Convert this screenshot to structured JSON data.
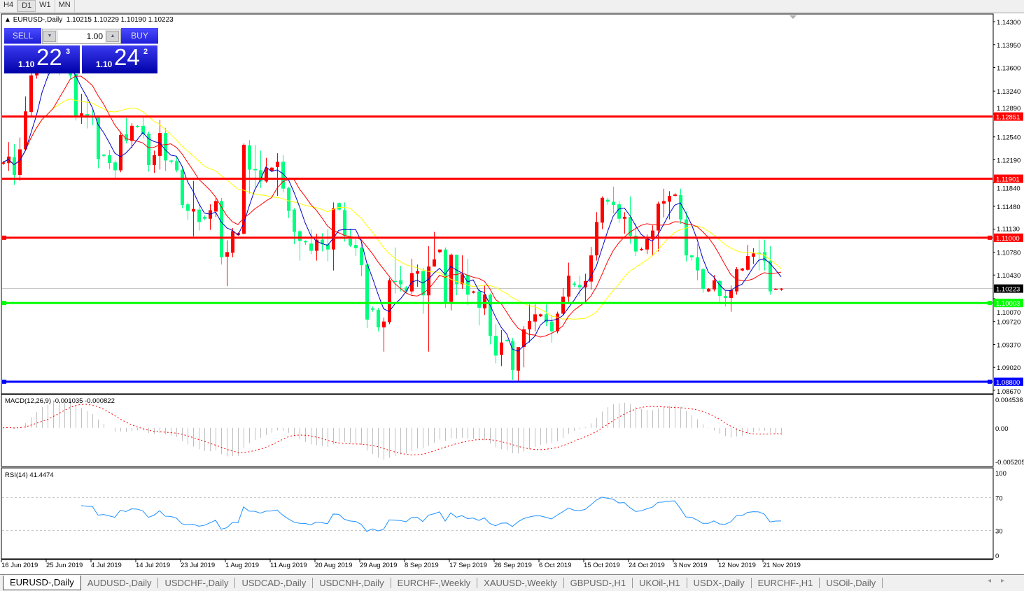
{
  "toolbar": {
    "timeframes": [
      "H4",
      "D1",
      "W1",
      "MN"
    ],
    "active": "D1"
  },
  "chart": {
    "symbol_info": "EURUSD-,Daily  1.10215 1.10229 1.10190 1.10223",
    "price_range": [
      1.08627,
      1.14407
    ],
    "price_ticks": [
      "1.14300",
      "1.13950",
      "1.13600",
      "1.13240",
      "1.12890",
      "1.12540",
      "1.12190",
      "1.11840",
      "1.11480",
      "1.11130",
      "1.10780",
      "1.10430",
      "1.10070",
      "1.09720",
      "1.09370",
      "1.09020",
      "1.08670"
    ],
    "current_price": "1.10223",
    "colors": {
      "bull": "#ff0000",
      "bear": "#00ff7f",
      "ma_fast": "#0000c8",
      "ma_mid": "#ff0000",
      "ma_slow": "#ffff00",
      "current_line": "#c0c0c0"
    },
    "hlines": [
      {
        "price": "1.12851",
        "color": "#ff0000",
        "selected": false
      },
      {
        "price": "1.11901",
        "color": "#ff0000",
        "selected": false
      },
      {
        "price": "1.11000",
        "color": "#ff0000",
        "selected": true
      },
      {
        "price": "1.10003",
        "color": "#00ff00",
        "selected": true
      },
      {
        "price": "1.08800",
        "color": "#0000ff",
        "selected": true
      }
    ],
    "candles": [
      [
        1.1213,
        1.1217,
        1.1211,
        1.1215
      ],
      [
        1.1214,
        1.1246,
        1.1202,
        1.1224
      ],
      [
        1.1223,
        1.1243,
        1.1181,
        1.1196
      ],
      [
        1.1196,
        1.1253,
        1.1187,
        1.1235
      ],
      [
        1.1235,
        1.1316,
        1.1235,
        1.1293
      ],
      [
        1.1292,
        1.1355,
        1.1286,
        1.1348
      ],
      [
        1.1348,
        1.1366,
        1.1343,
        1.1361
      ],
      [
        1.1361,
        1.1378,
        1.1355,
        1.1372
      ],
      [
        1.1372,
        1.1377,
        1.1343,
        1.1355
      ],
      [
        1.1355,
        1.1385,
        1.1351,
        1.1377
      ],
      [
        1.1377,
        1.1382,
        1.1348,
        1.1361
      ],
      [
        1.1361,
        1.1375,
        1.1355,
        1.1368
      ],
      [
        1.1368,
        1.1373,
        1.1343,
        1.1348
      ],
      [
        1.135,
        1.1355,
        1.1279,
        1.1285
      ],
      [
        1.1285,
        1.132,
        1.1274,
        1.129
      ],
      [
        1.1289,
        1.1311,
        1.1267,
        1.1285
      ],
      [
        1.1286,
        1.1295,
        1.1272,
        1.1284
      ],
      [
        1.1284,
        1.1286,
        1.1206,
        1.122
      ],
      [
        1.1227,
        1.1228,
        1.1223,
        1.1225
      ],
      [
        1.1226,
        1.1234,
        1.1205,
        1.1214
      ],
      [
        1.1215,
        1.1218,
        1.1192,
        1.1203
      ],
      [
        1.1203,
        1.1262,
        1.12,
        1.1257
      ],
      [
        1.1258,
        1.1283,
        1.1244,
        1.1248
      ],
      [
        1.1248,
        1.1275,
        1.1237,
        1.1271
      ],
      [
        1.1271,
        1.1272,
        1.1268,
        1.1269
      ],
      [
        1.1271,
        1.1283,
        1.1252,
        1.1258
      ],
      [
        1.1259,
        1.1262,
        1.1201,
        1.1211
      ],
      [
        1.1211,
        1.1233,
        1.1199,
        1.1226
      ],
      [
        1.1225,
        1.128,
        1.1204,
        1.126
      ],
      [
        1.126,
        1.1268,
        1.1202,
        1.1218
      ],
      [
        1.1218,
        1.1219,
        1.1213,
        1.1216
      ],
      [
        1.1217,
        1.1225,
        1.12,
        1.1203
      ],
      [
        1.1204,
        1.1207,
        1.1145,
        1.115
      ],
      [
        1.1151,
        1.1154,
        1.1127,
        1.1141
      ],
      [
        1.114,
        1.1187,
        1.1102,
        1.1144
      ],
      [
        1.1143,
        1.1151,
        1.1111,
        1.1124
      ],
      [
        1.1132,
        1.1134,
        1.1127,
        1.1129
      ],
      [
        1.1129,
        1.1151,
        1.1112,
        1.1142
      ],
      [
        1.114,
        1.1161,
        1.1132,
        1.1156
      ],
      [
        1.1156,
        1.1161,
        1.1059,
        1.107
      ],
      [
        1.1071,
        1.1096,
        1.1026,
        1.1078
      ],
      [
        1.1077,
        1.1115,
        1.107,
        1.111
      ],
      [
        1.1104,
        1.1108,
        1.1103,
        1.1107
      ],
      [
        1.1106,
        1.1244,
        1.1105,
        1.1242
      ],
      [
        1.1241,
        1.1249,
        1.1167,
        1.1204
      ],
      [
        1.1205,
        1.1242,
        1.1177,
        1.1203
      ],
      [
        1.1203,
        1.1233,
        1.1176,
        1.1186
      ],
      [
        1.1186,
        1.1222,
        1.1184,
        1.1206
      ],
      [
        1.1202,
        1.1208,
        1.1201,
        1.1207
      ],
      [
        1.1208,
        1.1229,
        1.1164,
        1.1216
      ],
      [
        1.1216,
        1.1226,
        1.1169,
        1.1175
      ],
      [
        1.1176,
        1.1178,
        1.113,
        1.1141
      ],
      [
        1.1143,
        1.1145,
        1.109,
        1.1109
      ],
      [
        1.111,
        1.1112,
        1.1065,
        1.1095
      ],
      [
        1.1095,
        1.1096,
        1.1089,
        1.1093
      ],
      [
        1.1091,
        1.1113,
        1.1075,
        1.108
      ],
      [
        1.108,
        1.1106,
        1.1065,
        1.1097
      ],
      [
        1.1097,
        1.1107,
        1.1079,
        1.109
      ],
      [
        1.109,
        1.1113,
        1.1064,
        1.1082
      ],
      [
        1.1082,
        1.1154,
        1.105,
        1.1145
      ],
      [
        1.1153,
        1.1154,
        1.1141,
        1.1143
      ],
      [
        1.1142,
        1.1154,
        1.1094,
        1.1103
      ],
      [
        1.1098,
        1.1114,
        1.1086,
        1.1088
      ],
      [
        1.1089,
        1.1098,
        1.1072,
        1.1084
      ],
      [
        1.1085,
        1.1092,
        1.1041,
        1.1058
      ],
      [
        1.1059,
        1.1061,
        1.0962,
        1.0975
      ],
      [
        1.0992,
        1.0995,
        1.0987,
        1.099
      ],
      [
        1.099,
        1.0993,
        1.0957,
        1.0963
      ],
      [
        1.0963,
        1.0978,
        1.0926,
        1.0972
      ],
      [
        1.0971,
        1.1038,
        1.0968,
        1.1035
      ],
      [
        1.1034,
        1.1085,
        1.1015,
        1.1033
      ],
      [
        1.1035,
        1.1057,
        1.1018,
        1.1029
      ],
      [
        1.1024,
        1.1026,
        1.1016,
        1.1018
      ],
      [
        1.1018,
        1.1068,
        1.1014,
        1.1046
      ],
      [
        1.1045,
        1.1059,
        1.1025,
        1.1049
      ],
      [
        1.1049,
        1.1054,
        1.0984,
        1.1012
      ],
      [
        1.1012,
        1.1087,
        1.0926,
        1.1056
      ],
      [
        1.1056,
        1.1109,
        1.1056,
        1.1067
      ],
      [
        1.1078,
        1.1082,
        1.1076,
        1.1082
      ],
      [
        1.1082,
        1.1085,
        1.0993,
        1.1002
      ],
      [
        1.1002,
        1.1076,
        1.0989,
        1.1074
      ],
      [
        1.1074,
        1.1074,
        1.1012,
        1.1029
      ],
      [
        1.1029,
        1.1073,
        1.1022,
        1.1044
      ],
      [
        1.1043,
        1.1068,
        1.0997,
        1.1013
      ],
      [
        1.1016,
        1.1019,
        1.1015,
        1.1018
      ],
      [
        1.1018,
        1.1023,
        1.0966,
        1.0993
      ],
      [
        1.0992,
        1.1027,
        1.0982,
        1.1013
      ],
      [
        1.1013,
        1.1015,
        1.0937,
        1.095
      ],
      [
        1.095,
        1.0968,
        1.0908,
        1.092
      ],
      [
        1.0921,
        1.0959,
        1.0904,
        1.094
      ],
      [
        1.0944,
        1.0945,
        1.0941,
        1.0942
      ],
      [
        1.0942,
        1.0947,
        1.0883,
        1.0898
      ],
      [
        1.0897,
        1.0932,
        1.0881,
        1.0933
      ],
      [
        1.0933,
        1.0965,
        1.0902,
        1.096
      ],
      [
        1.096,
        1.0998,
        1.094,
        1.0973
      ],
      [
        1.0972,
        1.0998,
        1.0957,
        1.0983
      ],
      [
        1.098,
        1.0984,
        1.0979,
        1.0983
      ],
      [
        1.0983,
        1.0998,
        1.0965,
        1.0971
      ],
      [
        1.0972,
        1.0982,
        1.094,
        1.0957
      ],
      [
        1.0957,
        1.0987,
        1.0954,
        1.0984
      ],
      [
        1.0984,
        1.1023,
        1.0982,
        1.101
      ],
      [
        1.101,
        1.1062,
        1.1002,
        1.1042
      ],
      [
        1.103,
        1.1033,
        1.1025,
        1.1028
      ],
      [
        1.1028,
        1.1042,
        1.1011,
        1.1024
      ],
      [
        1.1024,
        1.1045,
        1.1001,
        1.1034
      ],
      [
        1.1033,
        1.1086,
        1.1021,
        1.1073
      ],
      [
        1.1073,
        1.1139,
        1.1065,
        1.1124
      ],
      [
        1.1123,
        1.1163,
        1.1113,
        1.1161
      ],
      [
        1.1158,
        1.1161,
        1.115,
        1.1155
      ],
      [
        1.1155,
        1.1178,
        1.1137,
        1.115
      ],
      [
        1.1151,
        1.1156,
        1.1123,
        1.1129
      ],
      [
        1.1129,
        1.1139,
        1.1106,
        1.1132
      ],
      [
        1.1132,
        1.1163,
        1.1091,
        1.1103
      ],
      [
        1.1103,
        1.1122,
        1.1072,
        1.1079
      ],
      [
        1.1081,
        1.1085,
        1.108,
        1.1083
      ],
      [
        1.1082,
        1.1105,
        1.1075,
        1.1098
      ],
      [
        1.1098,
        1.1119,
        1.1072,
        1.1111
      ],
      [
        1.1111,
        1.1155,
        1.1079,
        1.1152
      ],
      [
        1.1152,
        1.1175,
        1.1131,
        1.1156
      ],
      [
        1.1155,
        1.1171,
        1.1128,
        1.1164
      ],
      [
        1.1164,
        1.1168,
        1.1163,
        1.1166
      ],
      [
        1.1165,
        1.1175,
        1.1121,
        1.1128
      ],
      [
        1.1128,
        1.114,
        1.1064,
        1.1073
      ],
      [
        1.1073,
        1.1074,
        1.1065,
        1.107
      ],
      [
        1.107,
        1.1091,
        1.1035,
        1.105
      ],
      [
        1.1052,
        1.1054,
        1.1016,
        1.1022
      ],
      [
        1.1018,
        1.1023,
        1.1017,
        1.1022
      ],
      [
        1.1021,
        1.1043,
        1.1018,
        1.1035
      ],
      [
        1.1034,
        1.1036,
        1.1002,
        1.1011
      ],
      [
        1.1011,
        1.102,
        1.0995,
        1.1008
      ],
      [
        1.1008,
        1.1027,
        1.0987,
        1.102
      ],
      [
        1.1018,
        1.1055,
        1.1013,
        1.1052
      ],
      [
        1.105,
        1.1054,
        1.1049,
        1.1053
      ],
      [
        1.1051,
        1.1089,
        1.105,
        1.1072
      ],
      [
        1.1071,
        1.1084,
        1.106,
        1.1076
      ],
      [
        1.1077,
        1.1097,
        1.105,
        1.1075
      ],
      [
        1.1078,
        1.1097,
        1.105,
        1.1064
      ],
      [
        1.1065,
        1.1087,
        1.1013,
        1.1018
      ],
      [
        1.1021,
        1.1023,
        1.102,
        1.1022
      ],
      [
        1.10215,
        1.10229,
        1.1019,
        1.10223
      ]
    ],
    "date_labels": [
      "16 Jun 2019",
      "25 Jun 2019",
      "4 Jul 2019",
      "14 Jul 2019",
      "23 Jul 2019",
      "1 Aug 2019",
      "11 Aug 2019",
      "20 Aug 2019",
      "29 Aug 2019",
      "8 Sep 2019",
      "17 Sep 2019",
      "26 Sep 2019",
      "6 Oct 2019",
      "15 Oct 2019",
      "24 Oct 2019",
      "3 Nov 2019",
      "12 Nov 2019",
      "21 Nov 2019"
    ]
  },
  "trade_panel": {
    "sell_label": "SELL",
    "buy_label": "BUY",
    "volume": "1.00",
    "sell_price": {
      "prefix": "1.10",
      "big": "22",
      "sup": "3"
    },
    "buy_price": {
      "prefix": "1.10",
      "big": "24",
      "sup": "2"
    }
  },
  "macd": {
    "label": "MACD(12,26,9) -0.001035 -0.000822",
    "ticks": [
      "0.004536",
      "0.00",
      "-0.005205"
    ],
    "range": [
      -0.005205,
      0.004536
    ]
  },
  "rsi": {
    "label": "RSI(14) 41.4474",
    "ticks": [
      "100",
      "70",
      "30",
      "0"
    ],
    "levels": [
      70,
      30
    ]
  },
  "tabs": [
    "EURUSD-,Daily",
    "AUDUSD-,Daily",
    "USDCHF-,Daily",
    "USDCAD-,Daily",
    "USDCNH-,Daily",
    "EURCHF-,Weekly",
    "XAUUSD-,Weekly",
    "GBPUSD-,H1",
    "UKOil-,H1",
    "USDX-,Daily",
    "EURCHF-,H1",
    "USOil-,Daily"
  ],
  "active_tab": "EURUSD-,Daily"
}
